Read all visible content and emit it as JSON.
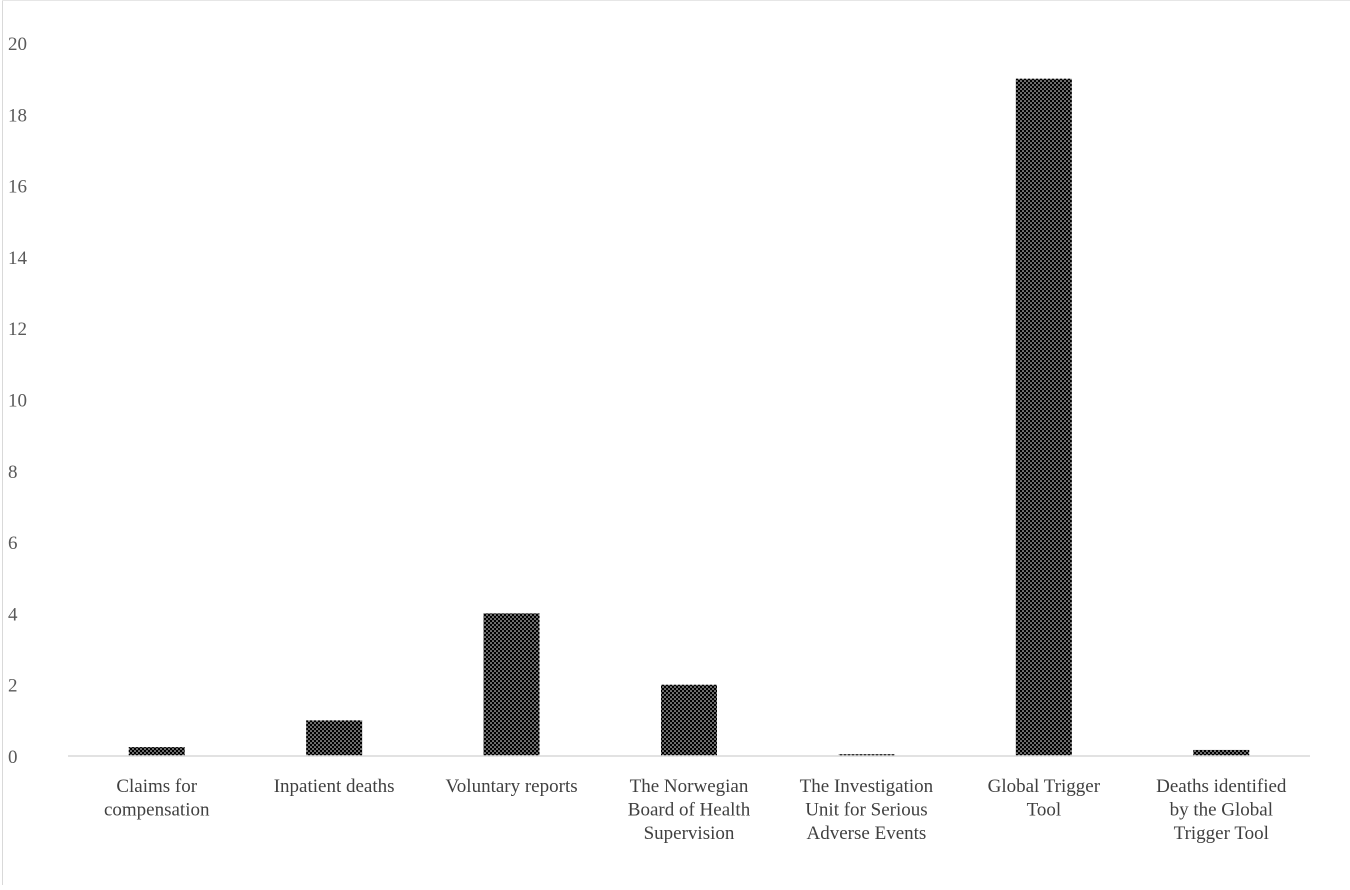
{
  "chart_data": {
    "type": "bar",
    "title": "",
    "xlabel": "",
    "ylabel": "",
    "ylim": [
      0,
      20
    ],
    "yticks": [
      0,
      2,
      4,
      6,
      8,
      10,
      12,
      14,
      16,
      18,
      20
    ],
    "grid": false,
    "legend": "none",
    "bar_fill": "dotted black pattern",
    "colors": {
      "bar": "#000000",
      "dots": "#ffffff",
      "axis": "#d9d9d9",
      "text": "#595959"
    },
    "categories": [
      [
        "Claims for",
        "compensation"
      ],
      [
        "Inpatient deaths"
      ],
      [
        "Voluntary reports"
      ],
      [
        "The Norwegian",
        "Board of Health",
        "Supervision"
      ],
      [
        "The Investigation",
        "Unit for Serious",
        "Adverse Events"
      ],
      [
        "Global Trigger",
        "Tool"
      ],
      [
        "Deaths identified",
        "by the Global",
        "Trigger Tool"
      ]
    ],
    "values": [
      0.25,
      1,
      4,
      2,
      0.05,
      19,
      0.17
    ]
  }
}
